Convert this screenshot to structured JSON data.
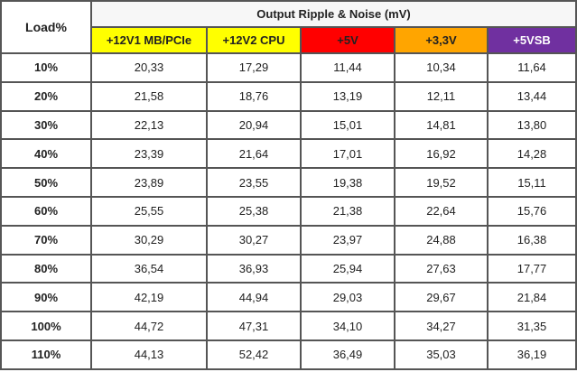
{
  "header": {
    "load": "Load%",
    "group": "Output Ripple & Noise (mV)",
    "columns": [
      "+12V1 MB/PCIe",
      "+12V2 CPU",
      "+5V",
      "+3,3V",
      "+5VSB"
    ]
  },
  "table": {
    "rows": [
      [
        "10%",
        "20,33",
        "17,29",
        "11,44",
        "10,34",
        "11,64"
      ],
      [
        "20%",
        "21,58",
        "18,76",
        "13,19",
        "12,11",
        "13,44"
      ],
      [
        "30%",
        "22,13",
        "20,94",
        "15,01",
        "14,81",
        "13,80"
      ],
      [
        "40%",
        "23,39",
        "21,64",
        "17,01",
        "16,92",
        "14,28"
      ],
      [
        "50%",
        "23,89",
        "23,55",
        "19,38",
        "19,52",
        "15,11"
      ],
      [
        "60%",
        "25,55",
        "25,38",
        "21,38",
        "22,64",
        "15,76"
      ],
      [
        "70%",
        "30,29",
        "30,27",
        "23,97",
        "24,88",
        "16,38"
      ],
      [
        "80%",
        "36,54",
        "36,93",
        "25,94",
        "27,63",
        "17,77"
      ],
      [
        "90%",
        "42,19",
        "44,94",
        "29,03",
        "29,67",
        "21,84"
      ],
      [
        "100%",
        "44,72",
        "47,31",
        "34,10",
        "34,27",
        "31,35"
      ],
      [
        "110%",
        "44,13",
        "52,42",
        "36,49",
        "35,03",
        "36,19"
      ]
    ]
  }
}
